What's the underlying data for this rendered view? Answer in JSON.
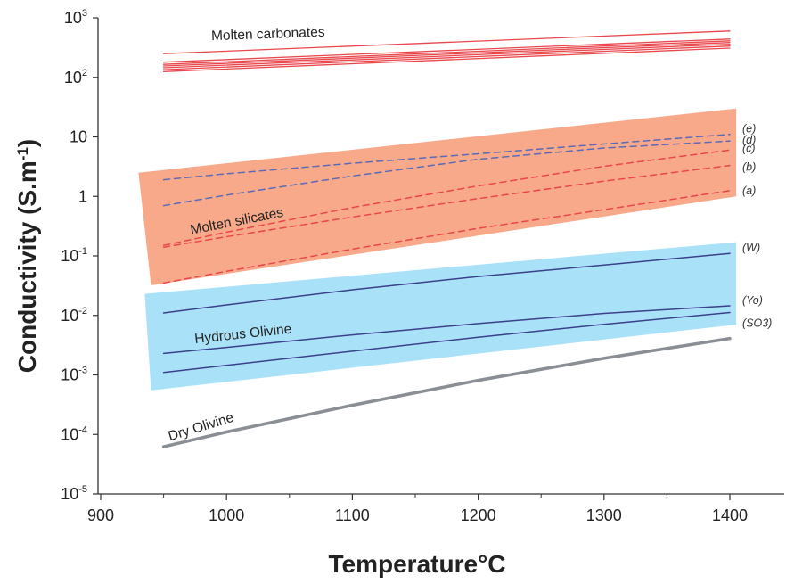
{
  "chart_data": {
    "type": "line",
    "title": "",
    "xlabel": "Temperature",
    "xlabel_suffix": "°C",
    "ylabel": "Conductivity (S.m",
    "ylabel_sup": "-1",
    "ylabel_close": ")",
    "xlim": [
      900,
      1450
    ],
    "ylim": [
      1e-05,
      1000
    ],
    "yscale": "log",
    "grid": false,
    "legend": "none",
    "x_ticks": [
      "900",
      "1000",
      "1100",
      "1200",
      "1300",
      "1400"
    ],
    "y_ticks": [
      {
        "value": 1000,
        "base": "10",
        "exp": "3"
      },
      {
        "value": 100,
        "base": "10",
        "exp": "2"
      },
      {
        "value": 10,
        "base": "10",
        "exp": ""
      },
      {
        "value": 1,
        "base": "1",
        "exp": ""
      },
      {
        "value": 0.1,
        "base": "10",
        "exp": "-1"
      },
      {
        "value": 0.01,
        "base": "10",
        "exp": "-2"
      },
      {
        "value": 0.001,
        "base": "10",
        "exp": "-3"
      },
      {
        "value": 0.0001,
        "base": "10",
        "exp": "-4"
      },
      {
        "value": 1e-05,
        "base": "10",
        "exp": "-5"
      }
    ],
    "bands": [
      {
        "label": "Molten silicates",
        "color": "#f7a98a",
        "corners": [
          [
            930,
            2.5
          ],
          [
            1405,
            30
          ],
          [
            1405,
            1.0
          ],
          [
            940,
            0.032
          ]
        ]
      },
      {
        "label": "Hydrous Olivine",
        "color": "#a9e2f8",
        "corners": [
          [
            935,
            0.023
          ],
          [
            1405,
            0.17
          ],
          [
            1405,
            0.007
          ],
          [
            940,
            0.00055
          ]
        ]
      }
    ],
    "band_labels": [
      "Molten silicates",
      "Hydrous Olivine"
    ],
    "group_labels": [
      "Molten carbonates",
      "Dry Olivine"
    ],
    "series": [
      {
        "name": "",
        "group": "Molten carbonates",
        "color": "#e8474c",
        "style": "solid",
        "width": 1.3,
        "x": [
          950,
          1400
        ],
        "y": [
          250,
          600
        ]
      },
      {
        "name": "",
        "group": "Molten carbonates",
        "color": "#e8474c",
        "style": "solid",
        "width": 1.3,
        "x": [
          950,
          1400
        ],
        "y": [
          180,
          440
        ]
      },
      {
        "name": "",
        "group": "Molten carbonates",
        "color": "#e8474c",
        "style": "solid",
        "width": 1.3,
        "x": [
          950,
          1400
        ],
        "y": [
          165,
          410
        ]
      },
      {
        "name": "",
        "group": "Molten carbonates",
        "color": "#e8474c",
        "style": "solid",
        "width": 1.3,
        "x": [
          950,
          1400
        ],
        "y": [
          155,
          385
        ]
      },
      {
        "name": "",
        "group": "Molten carbonates",
        "color": "#e8474c",
        "style": "solid",
        "width": 1.3,
        "x": [
          950,
          1400
        ],
        "y": [
          145,
          360
        ]
      },
      {
        "name": "",
        "group": "Molten carbonates",
        "color": "#e8474c",
        "style": "solid",
        "width": 1.3,
        "x": [
          950,
          1400
        ],
        "y": [
          135,
          335
        ]
      },
      {
        "name": "",
        "group": "Molten carbonates",
        "color": "#e8474c",
        "style": "solid",
        "width": 1.3,
        "x": [
          950,
          1400
        ],
        "y": [
          125,
          310
        ]
      },
      {
        "name": "(e)",
        "color": "#5b6bb5",
        "style": "dashed",
        "width": 1.5,
        "x": [
          950,
          1000,
          1100,
          1200,
          1300,
          1400
        ],
        "y": [
          1.9,
          2.4,
          3.6,
          5.2,
          7.6,
          11
        ]
      },
      {
        "name": "(d)",
        "color": "#5b6bb5",
        "style": "dashed",
        "width": 1.5,
        "x": [
          950,
          1000,
          1100,
          1200,
          1300,
          1400
        ],
        "y": [
          0.7,
          1.05,
          2.2,
          4.2,
          6.5,
          8.5
        ]
      },
      {
        "name": "(c)",
        "color": "#e8474c",
        "style": "dashed",
        "width": 1.5,
        "x": [
          950,
          1000,
          1100,
          1200,
          1300,
          1400
        ],
        "y": [
          0.15,
          0.25,
          0.65,
          1.5,
          3.2,
          6.0
        ]
      },
      {
        "name": "(b)",
        "color": "#e8474c",
        "style": "dashed",
        "width": 1.5,
        "x": [
          950,
          1000,
          1100,
          1200,
          1300,
          1400
        ],
        "y": [
          0.14,
          0.21,
          0.45,
          0.92,
          1.8,
          3.3
        ]
      },
      {
        "name": "(a)",
        "color": "#e8474c",
        "style": "dashed",
        "width": 1.5,
        "x": [
          950,
          1000,
          1100,
          1200,
          1300,
          1400
        ],
        "y": [
          0.035,
          0.055,
          0.13,
          0.29,
          0.6,
          1.25
        ]
      },
      {
        "name": "(W)",
        "color": "#3b3f8c",
        "style": "solid",
        "width": 1.5,
        "x": [
          950,
          1000,
          1100,
          1200,
          1300,
          1400
        ],
        "y": [
          0.011,
          0.015,
          0.027,
          0.045,
          0.07,
          0.11
        ]
      },
      {
        "name": "(Yo)",
        "color": "#3b3f8c",
        "style": "solid",
        "width": 1.5,
        "x": [
          950,
          1000,
          1100,
          1200,
          1300,
          1400
        ],
        "y": [
          0.0023,
          0.0029,
          0.0047,
          0.0073,
          0.0108,
          0.0145
        ]
      },
      {
        "name": "(SO3)",
        "color": "#3b3f8c",
        "style": "solid",
        "width": 1.5,
        "x": [
          950,
          1000,
          1100,
          1200,
          1300,
          1400
        ],
        "y": [
          0.0011,
          0.00145,
          0.0025,
          0.0043,
          0.0071,
          0.0112
        ]
      },
      {
        "name": "",
        "group": "Dry Olivine",
        "color": "#8a8f96",
        "style": "solid",
        "width": 3.5,
        "x": [
          950,
          1000,
          1100,
          1200,
          1300,
          1400
        ],
        "y": [
          6.2e-05,
          0.00011,
          0.00031,
          0.00081,
          0.0019,
          0.0041
        ]
      }
    ]
  }
}
